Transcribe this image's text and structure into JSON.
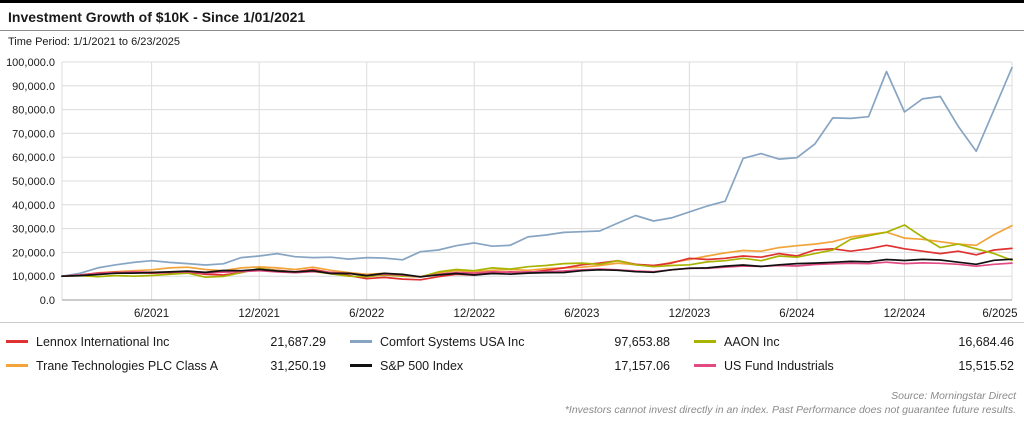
{
  "header": {
    "title": "Investment Growth of $10K  - Since 1/01/2021",
    "time_period": "Time Period: 1/1/2021 to 6/23/2025"
  },
  "footer": {
    "source": "Source: Morningstar Direct",
    "disclaimer": "*Investors cannot invest directly in an index. Past Performance does not guarantee future results."
  },
  "chart_data": {
    "type": "line",
    "title": "Investment Growth of $10K - Since 1/01/2021",
    "x_unit": "monthly points from 1/2021 (index 0) to 6/23/2025 (index 53)",
    "x_tick_labels": [
      "6/2021",
      "12/2021",
      "6/2022",
      "12/2022",
      "6/2023",
      "12/2023",
      "6/2024",
      "12/2024",
      "6/2025"
    ],
    "x_tick_month_index": [
      5,
      11,
      17,
      23,
      29,
      35,
      41,
      47,
      53
    ],
    "ylim": [
      0,
      100000
    ],
    "y_tick_step": 10000,
    "y_tick_labels": [
      "100,000.0",
      "90,000.0",
      "80,000.0",
      "70,000.0",
      "60,000.0",
      "50,000.0",
      "40,000.0",
      "30,000.0",
      "20,000.0",
      "10,000.0",
      "0.0"
    ],
    "grid": true,
    "legend_position": "bottom",
    "series": [
      {
        "name": "Lennox International Inc",
        "color": "#e03131",
        "final_value": "21,687.29",
        "values": [
          10000,
          10500,
          11300,
          11700,
          11500,
          11300,
          11500,
          11700,
          10800,
          10500,
          11500,
          13200,
          12500,
          11800,
          12800,
          11500,
          10300,
          9000,
          9500,
          8800,
          8500,
          9800,
          10800,
          10500,
          11500,
          11800,
          11500,
          12500,
          13500,
          14800,
          15500,
          16500,
          15000,
          14500,
          15500,
          17500,
          17000,
          17500,
          18500,
          18000,
          19500,
          18500,
          21000,
          21500,
          20500,
          21500,
          23000,
          21500,
          20500,
          19500,
          20500,
          19000,
          21000,
          21687.29
        ]
      },
      {
        "name": "Trane Technologies PLC Class A",
        "color": "#f2a43a",
        "final_value": "31,250.19",
        "values": [
          10000,
          10300,
          11400,
          11900,
          12300,
          12700,
          13500,
          13800,
          12800,
          12300,
          13500,
          13900,
          13500,
          12800,
          13800,
          12500,
          11500,
          10800,
          11200,
          10300,
          9800,
          11500,
          12300,
          11800,
          12500,
          12800,
          12500,
          13200,
          13500,
          13800,
          14500,
          15500,
          14800,
          14200,
          15800,
          17000,
          18500,
          19800,
          20800,
          20500,
          22000,
          22800,
          23500,
          24500,
          26500,
          27500,
          28500,
          26000,
          25500,
          24500,
          23500,
          23000,
          27500,
          31250.19
        ]
      },
      {
        "name": "Comfort Systems USA Inc",
        "color": "#87a5c3",
        "final_value": "97,653.88",
        "values": [
          10000,
          11200,
          13500,
          14800,
          15800,
          16500,
          15800,
          15300,
          14700,
          15200,
          17800,
          18500,
          19500,
          18200,
          17800,
          18000,
          17200,
          17800,
          17600,
          16900,
          20300,
          21000,
          22800,
          24000,
          22600,
          23000,
          26500,
          27300,
          28400,
          28700,
          29000,
          32300,
          35500,
          33200,
          34500,
          37000,
          39500,
          41500,
          59500,
          61500,
          59200,
          59800,
          65500,
          76500,
          76300,
          77000,
          96000,
          79000,
          84500,
          85500,
          73000,
          62500,
          80000,
          97653.88
        ]
      },
      {
        "name": "S&P 500 Index",
        "color": "#111111",
        "final_value": "17,157.06",
        "values": [
          10000,
          10250,
          10700,
          11250,
          11300,
          11550,
          11800,
          12150,
          11600,
          12400,
          12300,
          12850,
          12200,
          11800,
          12250,
          11150,
          11170,
          10250,
          11200,
          10750,
          9750,
          10550,
          11150,
          10500,
          11150,
          10900,
          11300,
          11500,
          11550,
          12300,
          12700,
          12500,
          11900,
          11650,
          12700,
          13300,
          13500,
          14250,
          14700,
          14100,
          14800,
          15300,
          15500,
          15850,
          16200,
          16050,
          17000,
          16600,
          17050,
          16800,
          15900,
          15000,
          16700,
          17157.06
        ]
      },
      {
        "name": "AAON Inc",
        "color": "#a8b400",
        "final_value": "16,684.46",
        "values": [
          10000,
          10200,
          9800,
          10300,
          10000,
          10300,
          10800,
          11300,
          9600,
          9900,
          11500,
          13200,
          12300,
          11500,
          12000,
          11000,
          10000,
          9800,
          10500,
          10000,
          9700,
          11800,
          12800,
          12300,
          13500,
          13000,
          14000,
          14500,
          15300,
          15500,
          15000,
          16500,
          14800,
          14000,
          14500,
          14800,
          16000,
          16500,
          17500,
          16500,
          18500,
          18000,
          19500,
          21000,
          25500,
          27000,
          28500,
          31500,
          26500,
          22000,
          23500,
          21500,
          19500,
          16684.46
        ]
      },
      {
        "name": "US Fund Industrials",
        "color": "#e24a83",
        "final_value": "15,515.52",
        "values": [
          10000,
          10400,
          11200,
          11500,
          11800,
          11600,
          11700,
          11800,
          11300,
          11700,
          11900,
          12300,
          11800,
          11500,
          11900,
          11600,
          11200,
          10300,
          10900,
          10500,
          9700,
          10800,
          11500,
          11300,
          11900,
          11700,
          11800,
          11900,
          12200,
          12700,
          13000,
          12700,
          12200,
          11900,
          12700,
          13400,
          13300,
          13800,
          14300,
          14100,
          14500,
          14300,
          14900,
          15200,
          15400,
          15300,
          15900,
          15300,
          15600,
          15400,
          15000,
          14200,
          15000,
          15515.52
        ]
      }
    ]
  }
}
